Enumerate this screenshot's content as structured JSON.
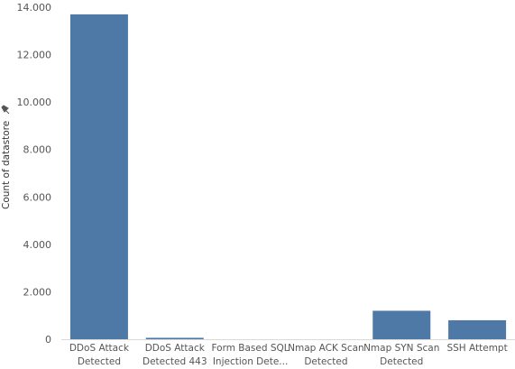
{
  "chart_data": {
    "type": "bar",
    "categories": [
      [
        "DDoS Attack",
        "Detected"
      ],
      [
        "DDoS Attack",
        "Detected 443"
      ],
      [
        "Form Based SQL",
        "Injection Dete..."
      ],
      [
        "Nmap ACK Scan",
        "Detected"
      ],
      [
        "Nmap SYN Scan",
        "Detected"
      ],
      [
        "SSH Attempt"
      ]
    ],
    "values": [
      13700,
      60,
      0,
      0,
      1200,
      800
    ],
    "ylabel": "Count of datastore",
    "ylim": [
      0,
      14000
    ],
    "yticks": [
      {
        "value": 0,
        "label": "0"
      },
      {
        "value": 2000,
        "label": "2.000"
      },
      {
        "value": 4000,
        "label": "4.000"
      },
      {
        "value": 6000,
        "label": "6.000"
      },
      {
        "value": 8000,
        "label": "8.000"
      },
      {
        "value": 10000,
        "label": "10.000"
      },
      {
        "value": 12000,
        "label": "12.000"
      },
      {
        "value": 14000,
        "label": "14.000"
      }
    ],
    "bar_color": "#4e79a7",
    "grid": false,
    "ylabel_icon": "pin-icon"
  }
}
